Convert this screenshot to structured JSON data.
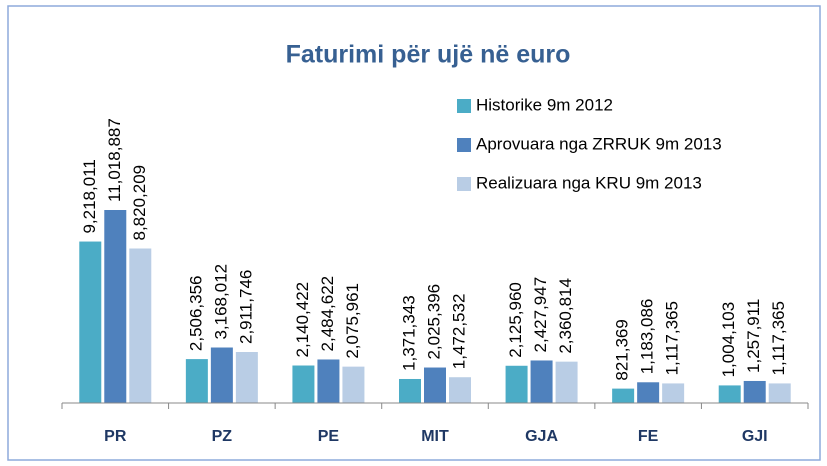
{
  "chart_data": {
    "type": "bar",
    "title": "Faturimi për ujë në euro",
    "categories": [
      "PR",
      "PZ",
      "PE",
      "MIT",
      "GJA",
      "FE",
      "GJI"
    ],
    "legend": "top-right",
    "series": [
      {
        "name": "Historike 9m 2012",
        "color": "#4bacc6",
        "values": [
          9218011,
          2506356,
          2140422,
          1371343,
          2125960,
          821369,
          1004103
        ],
        "value_labels": [
          "9,218,011",
          "2,506,356",
          "2,140,422",
          "1,371,343",
          "2,125,960",
          "821,369",
          "1,004,103"
        ]
      },
      {
        "name": "Aprovuara nga ZRRUK 9m 2013",
        "color": "#4f81bd",
        "values": [
          11018887,
          3168012,
          2484622,
          2025396,
          2427947,
          1183086,
          1257911
        ],
        "value_labels": [
          "11,018,887",
          "3,168,012",
          "2,484,622",
          "2,025,396",
          "2,427,947",
          "1,183,086",
          "1,257,911"
        ]
      },
      {
        "name": "Realizuara nga KRU 9m 2013",
        "color": "#b9cde5",
        "values": [
          8820209,
          2911746,
          2075961,
          1472532,
          2360814,
          1117365,
          1117365
        ],
        "value_labels": [
          "8,820,209",
          "2,911,746",
          "2,075,961",
          "1,472,532",
          "2,360,814",
          "1,117,365",
          "1,117,365"
        ]
      }
    ]
  }
}
